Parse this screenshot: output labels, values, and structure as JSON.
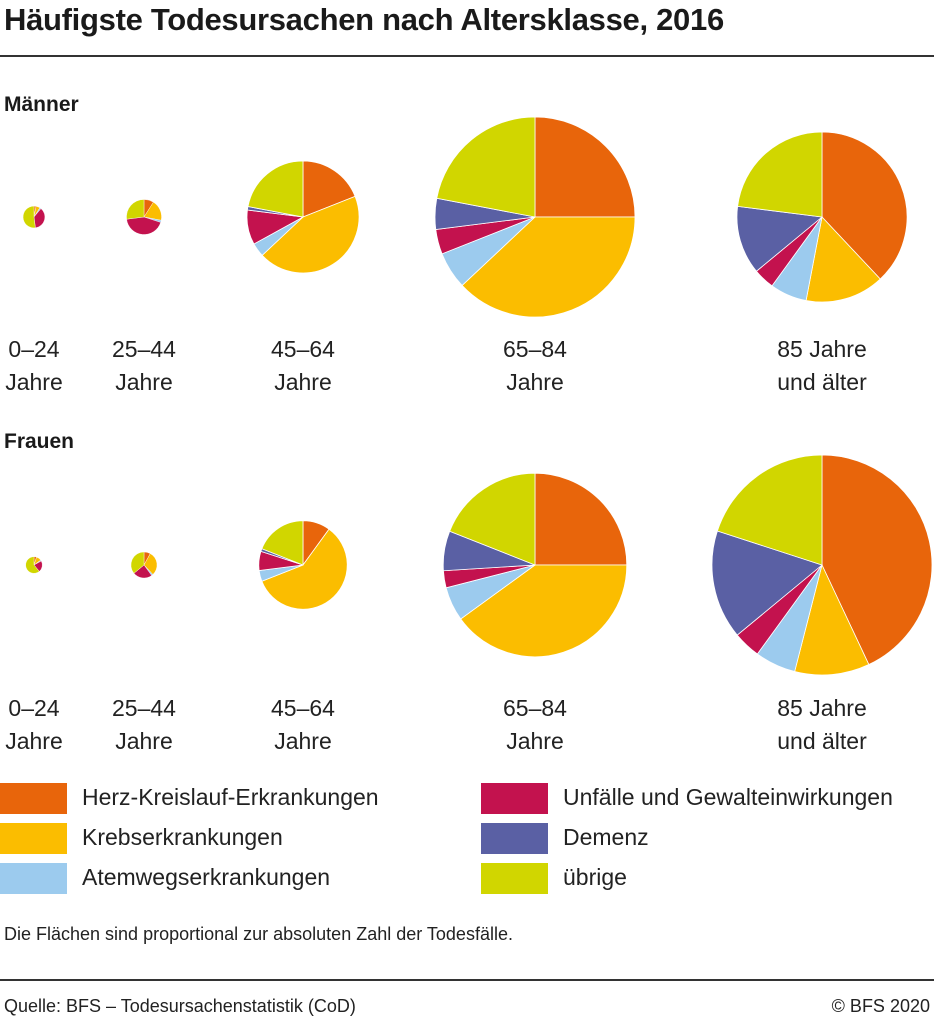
{
  "title": "Häufigste Todesursachen nach Altersklasse, 2016",
  "note": "Die Flächen sind proportional zur absoluten Zahl der Todesfälle.",
  "source": "Quelle: BFS – Todesursachenstatistik (CoD)",
  "copyright": "© BFS 2020",
  "colors": {
    "herz": "#e8650b",
    "krebs": "#fbbd00",
    "atemweg": "#9ccbee",
    "unfall": "#c3124e",
    "demenz": "#5a60a4",
    "uebrige": "#d1d600"
  },
  "legend": [
    {
      "key": "herz",
      "label": "Herz-Kreislauf-Erkrankungen"
    },
    {
      "key": "krebs",
      "label": "Krebserkrankungen"
    },
    {
      "key": "atemweg",
      "label": "Atemwegserkrankungen"
    },
    {
      "key": "unfall",
      "label": "Unfälle und Gewalteinwirkungen"
    },
    {
      "key": "demenz",
      "label": "Demenz"
    },
    {
      "key": "uebrige",
      "label": "übrige"
    }
  ],
  "chart_data": [
    {
      "type": "pie",
      "title": "Männer",
      "series_order": [
        "herz",
        "krebs",
        "atemweg",
        "unfall",
        "demenz",
        "uebrige"
      ],
      "groups": [
        {
          "line1": "0–24",
          "line2": "Jahre",
          "area_rel": 0.0119,
          "shares": {
            "herz": 0.03,
            "krebs": 0.06,
            "atemweg": 0.02,
            "unfall": 0.37,
            "demenz": 0.0,
            "uebrige": 0.52
          }
        },
        {
          "line1": "25–44",
          "line2": "Jahre",
          "area_rel": 0.0308,
          "shares": {
            "herz": 0.09,
            "krebs": 0.19,
            "atemweg": 0.02,
            "unfall": 0.43,
            "demenz": 0.0,
            "uebrige": 0.27
          }
        },
        {
          "line1": "45–64",
          "line2": "Jahre",
          "area_rel": 0.3136,
          "shares": {
            "herz": 0.19,
            "krebs": 0.44,
            "atemweg": 0.04,
            "unfall": 0.1,
            "demenz": 0.01,
            "uebrige": 0.22
          }
        },
        {
          "line1": "65–84",
          "line2": "Jahre",
          "area_rel": 1.0,
          "shares": {
            "herz": 0.25,
            "krebs": 0.38,
            "atemweg": 0.06,
            "unfall": 0.04,
            "demenz": 0.05,
            "uebrige": 0.22
          }
        },
        {
          "line1": "85 Jahre",
          "line2": "und älter",
          "area_rel": 0.7234,
          "shares": {
            "herz": 0.38,
            "krebs": 0.15,
            "atemweg": 0.07,
            "unfall": 0.04,
            "demenz": 0.13,
            "uebrige": 0.23
          }
        }
      ]
    },
    {
      "type": "pie",
      "title": "Frauen",
      "series_order": [
        "herz",
        "krebs",
        "atemweg",
        "unfall",
        "demenz",
        "uebrige"
      ],
      "groups": [
        {
          "line1": "0–24",
          "line2": "Jahre",
          "area_rel": 0.0069,
          "shares": {
            "herz": 0.05,
            "krebs": 0.1,
            "atemweg": 0.02,
            "unfall": 0.22,
            "demenz": 0.0,
            "uebrige": 0.61
          }
        },
        {
          "line1": "25–44",
          "line2": "Jahre",
          "area_rel": 0.017,
          "shares": {
            "herz": 0.08,
            "krebs": 0.3,
            "atemweg": 0.02,
            "unfall": 0.24,
            "demenz": 0.0,
            "uebrige": 0.36
          }
        },
        {
          "line1": "45–64",
          "line2": "Jahre",
          "area_rel": 0.1957,
          "shares": {
            "herz": 0.1,
            "krebs": 0.59,
            "atemweg": 0.04,
            "unfall": 0.07,
            "demenz": 0.01,
            "uebrige": 0.19
          }
        },
        {
          "line1": "65–84",
          "line2": "Jahre",
          "area_rel": 0.8418,
          "shares": {
            "herz": 0.25,
            "krebs": 0.4,
            "atemweg": 0.06,
            "unfall": 0.03,
            "demenz": 0.07,
            "uebrige": 0.19
          }
        },
        {
          "line1": "85 Jahre",
          "line2": "und älter",
          "area_rel": 1.2098,
          "shares": {
            "herz": 0.43,
            "krebs": 0.11,
            "atemweg": 0.06,
            "unfall": 0.04,
            "demenz": 0.16,
            "uebrige": 0.2
          }
        }
      ]
    }
  ]
}
